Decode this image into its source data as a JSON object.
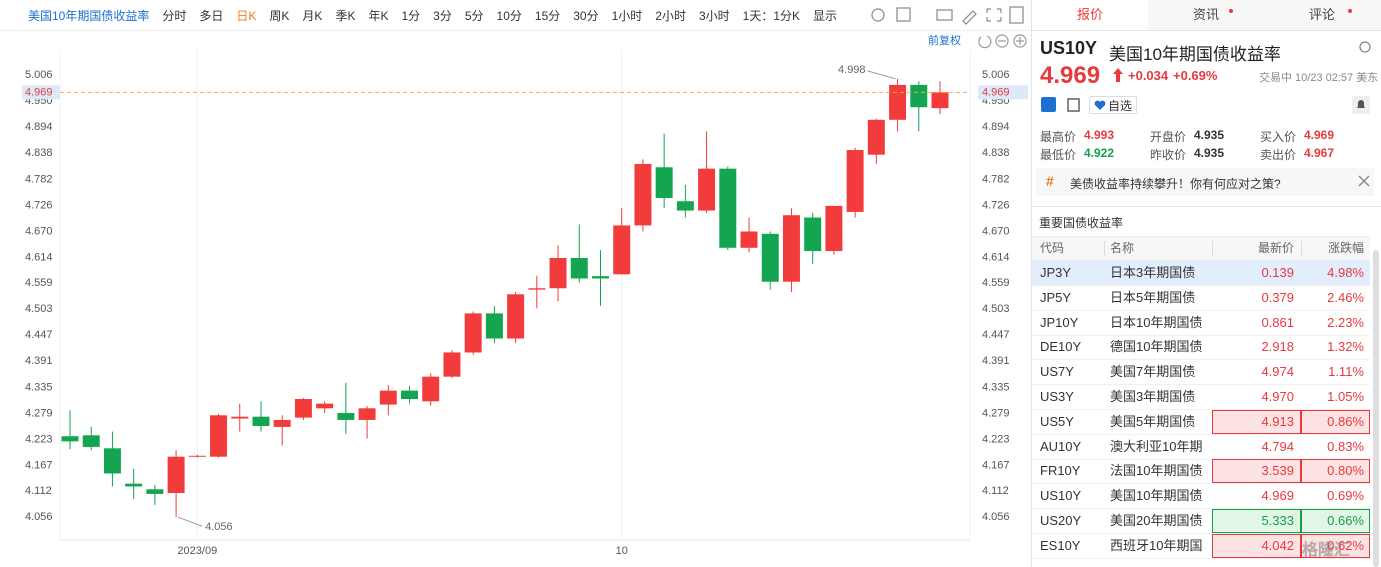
{
  "toolbar": {
    "symbol_name": "美国10年期国债收益率",
    "periods": [
      "分时",
      "多日",
      "日K",
      "周K",
      "月K",
      "季K",
      "年K",
      "1分",
      "3分",
      "5分",
      "10分",
      "15分",
      "30分",
      "1小时",
      "2小时",
      "3小时",
      "1天：1分K",
      "显示"
    ],
    "active_index": 2,
    "adjust": "前复权"
  },
  "chart_data": {
    "type": "candlestick",
    "categories": [
      null,
      null,
      null,
      null,
      null,
      null,
      "2023/09",
      null,
      null,
      null,
      null,
      null,
      null,
      null,
      null,
      null,
      null,
      null,
      null,
      null,
      null,
      null,
      null,
      null,
      null,
      null,
      "10",
      null,
      null,
      null,
      null,
      null,
      null,
      null,
      null,
      null,
      null,
      null,
      null,
      null,
      null,
      null
    ],
    "open": [
      4.23,
      4.232,
      4.204,
      4.128,
      4.116,
      4.108,
      4.186,
      4.186,
      4.268,
      4.272,
      4.25,
      4.27,
      4.29,
      4.28,
      4.265,
      4.298,
      4.328,
      4.305,
      4.358,
      4.41,
      4.494,
      4.44,
      4.545,
      4.548,
      4.613,
      4.574,
      4.578,
      4.683,
      4.808,
      4.735,
      4.715,
      4.805,
      4.635,
      4.665,
      4.562,
      4.7,
      4.628,
      4.712,
      4.835,
      4.91,
      4.985,
      4.935
    ],
    "high": [
      4.286,
      4.25,
      4.24,
      4.16,
      4.125,
      4.2,
      4.19,
      4.278,
      4.3,
      4.305,
      4.275,
      4.312,
      4.305,
      4.345,
      4.295,
      4.34,
      4.338,
      4.365,
      4.415,
      4.498,
      4.51,
      4.54,
      4.575,
      4.64,
      4.685,
      4.63,
      4.72,
      4.825,
      4.88,
      4.77,
      4.885,
      4.81,
      4.7,
      4.67,
      4.72,
      4.71,
      4.725,
      4.85,
      4.912,
      4.998,
      4.993,
      4.993
    ],
    "low": [
      4.202,
      4.2,
      4.122,
      4.095,
      4.082,
      4.056,
      4.184,
      4.184,
      4.24,
      4.24,
      4.21,
      4.265,
      4.28,
      4.235,
      4.225,
      4.275,
      4.3,
      4.296,
      4.355,
      4.405,
      4.43,
      4.43,
      4.505,
      4.52,
      4.56,
      4.51,
      4.578,
      4.67,
      4.72,
      4.7,
      4.71,
      4.63,
      4.625,
      4.545,
      4.54,
      4.6,
      4.62,
      4.7,
      4.815,
      4.885,
      4.885,
      4.922
    ],
    "close": [
      4.219,
      4.207,
      4.15,
      4.122,
      4.106,
      4.186,
      4.188,
      4.275,
      4.272,
      4.252,
      4.265,
      4.31,
      4.3,
      4.265,
      4.29,
      4.328,
      4.31,
      4.358,
      4.41,
      4.494,
      4.44,
      4.535,
      4.548,
      4.613,
      4.569,
      4.569,
      4.683,
      4.815,
      4.742,
      4.715,
      4.805,
      4.635,
      4.67,
      4.562,
      4.705,
      4.628,
      4.725,
      4.845,
      4.91,
      4.985,
      4.937,
      4.969
    ],
    "up_color": "#f23b3b",
    "down_color": "#14a550",
    "price_line_color": "#f5a25d",
    "ylim": [
      4.007,
      5.06
    ],
    "yticks": [
      5.006,
      {
        "value": 4.95,
        "label": "4.950"
      },
      4.894,
      4.838,
      4.782,
      4.726,
      {
        "value": 4.67,
        "label": "4.670"
      },
      4.614,
      4.559,
      4.503,
      4.447,
      4.391,
      4.335,
      4.279,
      4.223,
      4.167,
      4.112,
      4.056
    ],
    "grid": false
  },
  "quote_panel": {
    "tabs": [
      "报价",
      "资讯",
      "评论"
    ],
    "active_tab": 0,
    "symbol": "US10Y",
    "price": "4.969",
    "change": "+0.034",
    "change_pct": "+0.69%",
    "status": "交易中 10/23 02:57 美东",
    "watch_button": "自选",
    "stats": [
      {
        "label": "最高价",
        "value": "4.993",
        "color": "#e8393d"
      },
      {
        "label": "开盘价",
        "value": "4.935",
        "color": "#333333"
      },
      {
        "label": "买入价",
        "value": "4.969",
        "color": "#e8393d"
      },
      {
        "label": "最低价",
        "value": "4.922",
        "color": "#13a04a"
      },
      {
        "label": "昨收价",
        "value": "4.935",
        "color": "#333333"
      },
      {
        "label": "卖出价",
        "value": "4.967",
        "color": "#e8393d"
      }
    ],
    "banner": "美债收益率持续攀升！你有何应对之策?",
    "table": {
      "title": "重要国债收益率",
      "headers": [
        "代码",
        "名称",
        "最新价",
        "涨跌幅"
      ],
      "selected_row": 0,
      "rows": [
        {
          "code": "JP3Y",
          "name": "日本3年期国债",
          "price": "0.139",
          "change": "4.98%",
          "color": "#e8393d"
        },
        {
          "code": "JP5Y",
          "name": "日本5年期国债",
          "price": "0.379",
          "change": "2.46%",
          "color": "#e8393d"
        },
        {
          "code": "JP10Y",
          "name": "日本10年期国债",
          "price": "0.861",
          "change": "2.23%",
          "color": "#e8393d"
        },
        {
          "code": "DE10Y",
          "name": "德国10年期国债",
          "price": "2.918",
          "change": "1.32%",
          "color": "#e8393d"
        },
        {
          "code": "US7Y",
          "name": "美国7年期国债",
          "price": "4.974",
          "change": "1.11%",
          "color": "#e8393d"
        },
        {
          "code": "US3Y",
          "name": "美国3年期国债",
          "price": "4.970",
          "change": "1.05%",
          "color": "#e8393d"
        },
        {
          "code": "US5Y",
          "name": "美国5年期国债",
          "price": "4.913",
          "change": "0.86%",
          "color": "#e8393d",
          "flash": "#fde3e3"
        },
        {
          "code": "AU10Y",
          "name": "澳大利亚10年期",
          "price": "4.794",
          "change": "0.83%",
          "color": "#e8393d"
        },
        {
          "code": "FR10Y",
          "name": "法国10年期国债",
          "price": "3.539",
          "change": "0.80%",
          "color": "#e8393d",
          "flash": "#fde3e3"
        },
        {
          "code": "US10Y",
          "name": "美国10年期国债",
          "price": "4.969",
          "change": "0.69%",
          "color": "#e8393d"
        },
        {
          "code": "US20Y",
          "name": "美国20年期国债",
          "price": "5.333",
          "change": "0.66%",
          "color": "#13a04a",
          "flash": "#e2f6e8"
        },
        {
          "code": "ES10Y",
          "name": "西班牙10年期国",
          "price": "4.042",
          "change": "0.62%",
          "color": "#e8393d",
          "flash": "#fde3e3"
        }
      ]
    }
  },
  "watermark": "格隆汇"
}
